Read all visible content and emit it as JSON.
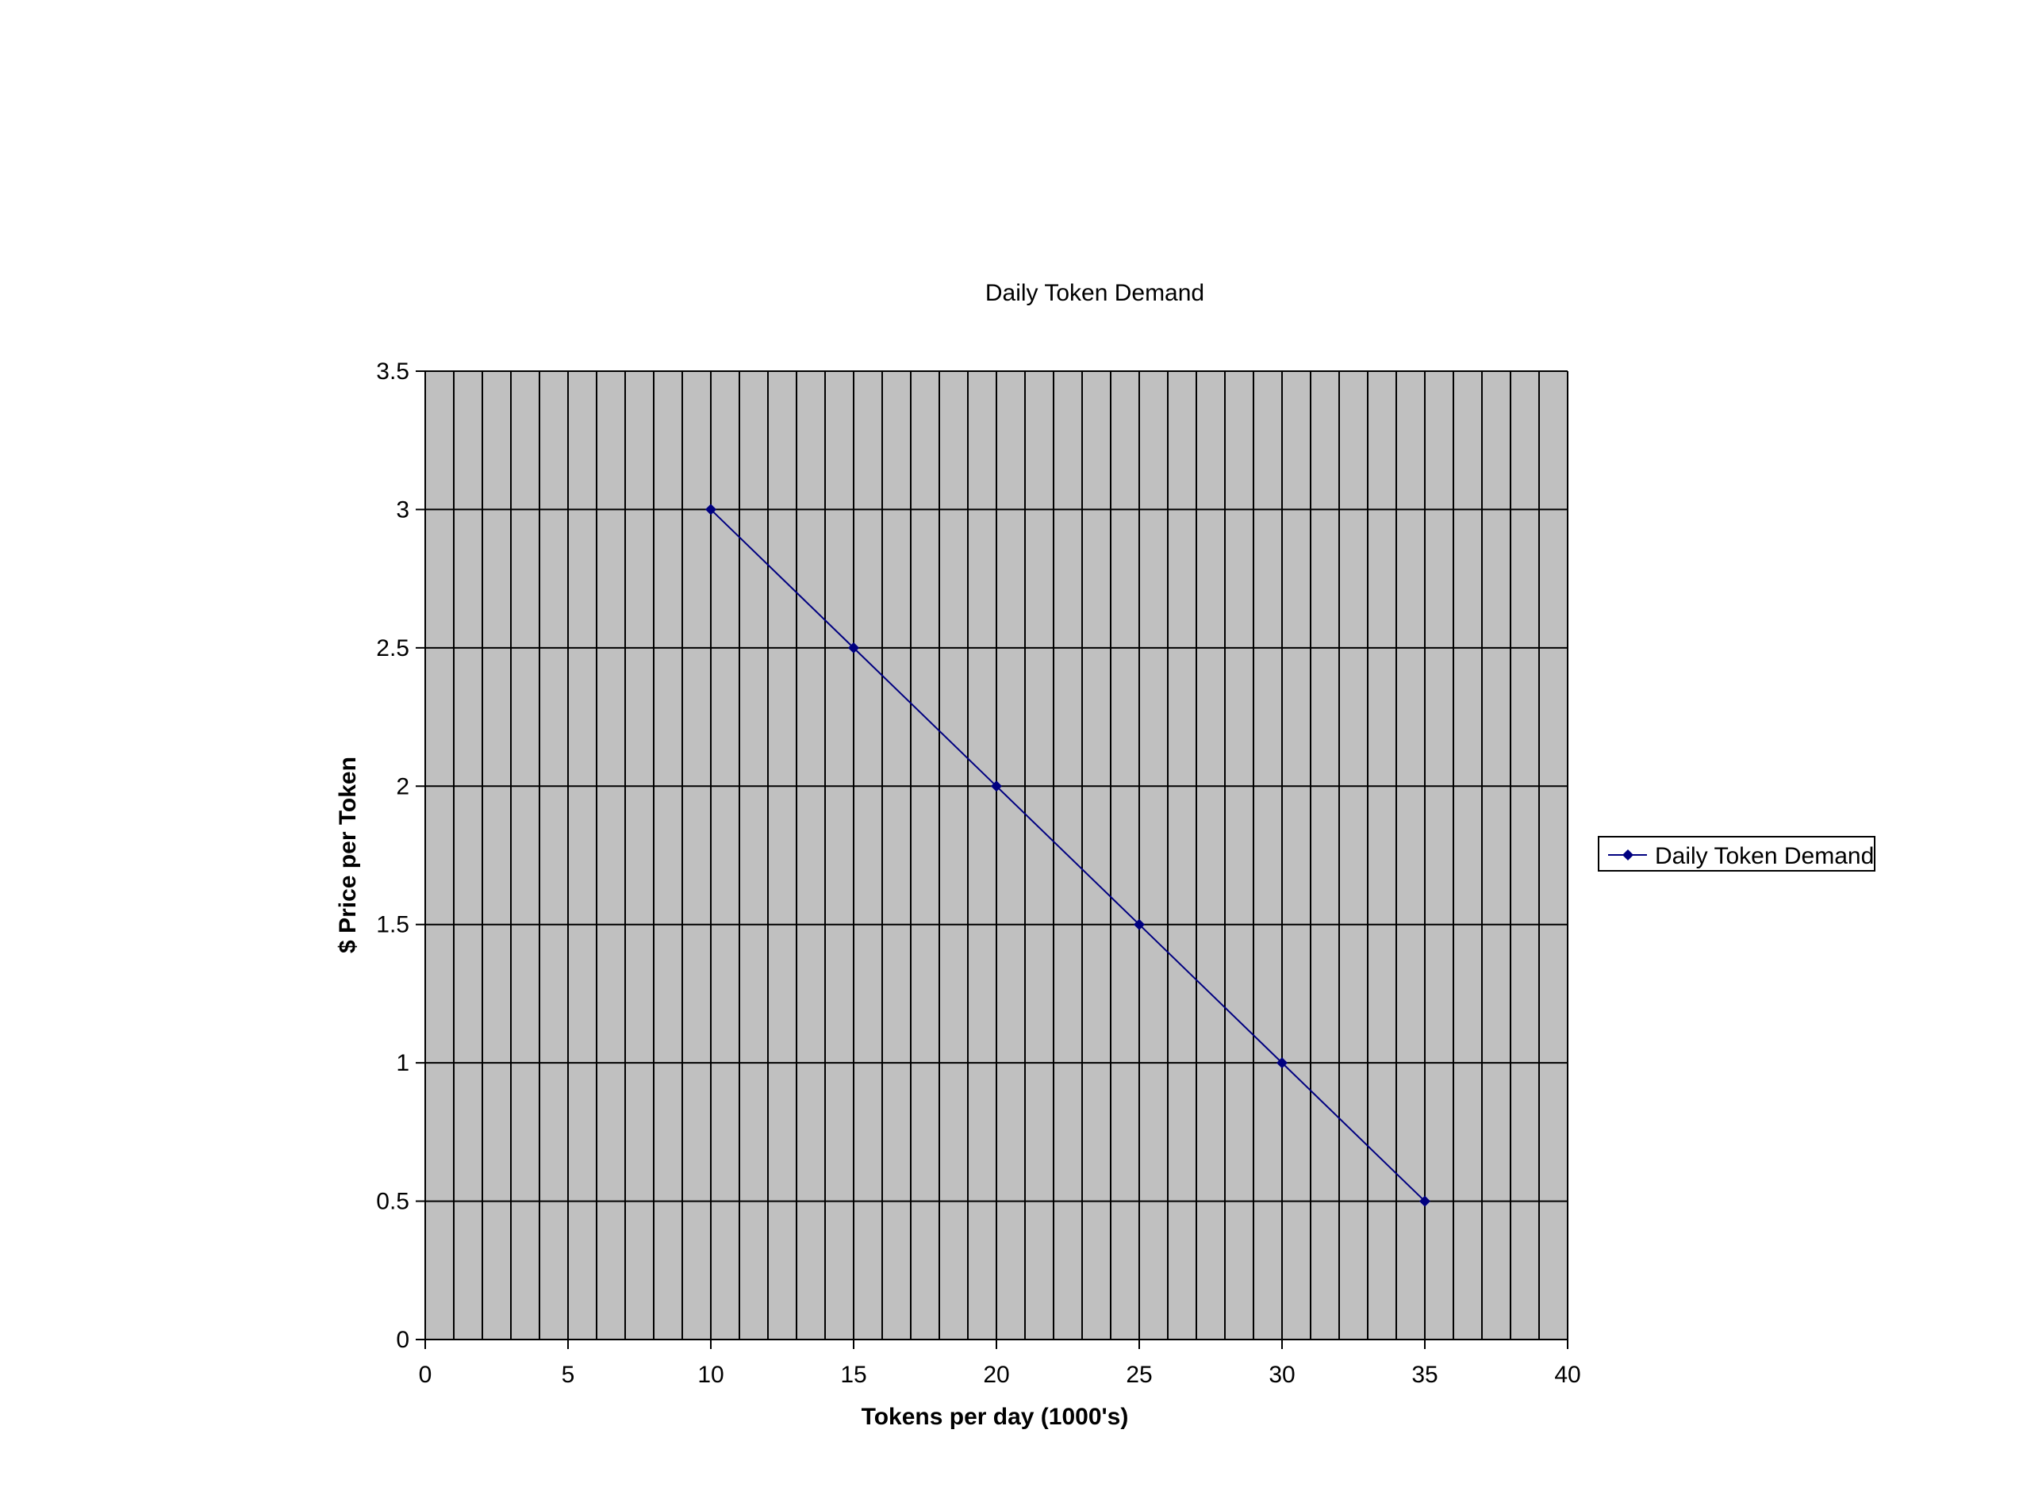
{
  "chart_data": {
    "type": "line",
    "title": "Daily Token Demand",
    "xlabel": "Tokens per day (1000's)",
    "ylabel": "$ Price per Token",
    "xlim": [
      0,
      40
    ],
    "ylim": [
      0,
      3.5
    ],
    "x_ticks": [
      0,
      5,
      10,
      15,
      20,
      25,
      30,
      35,
      40
    ],
    "y_ticks": [
      0,
      0.5,
      1,
      1.5,
      2,
      2.5,
      3,
      3.5
    ],
    "x_ticks_labels": [
      "0",
      "5",
      "10",
      "15",
      "20",
      "25",
      "30",
      "35",
      "40"
    ],
    "y_ticks_labels": [
      "0",
      "0.5",
      "1",
      "1.5",
      "2",
      "2.5",
      "3",
      "3.5"
    ],
    "x_minor_gridline_step": 1,
    "grid": true,
    "plot_background": "#c0c0c0",
    "legend_position": "right",
    "series": [
      {
        "name": "Daily Token Demand",
        "color": "#000080",
        "marker": "diamond",
        "x": [
          10,
          15,
          20,
          25,
          30,
          35
        ],
        "y": [
          3,
          2.5,
          2,
          1.5,
          1,
          0.5
        ]
      }
    ]
  }
}
